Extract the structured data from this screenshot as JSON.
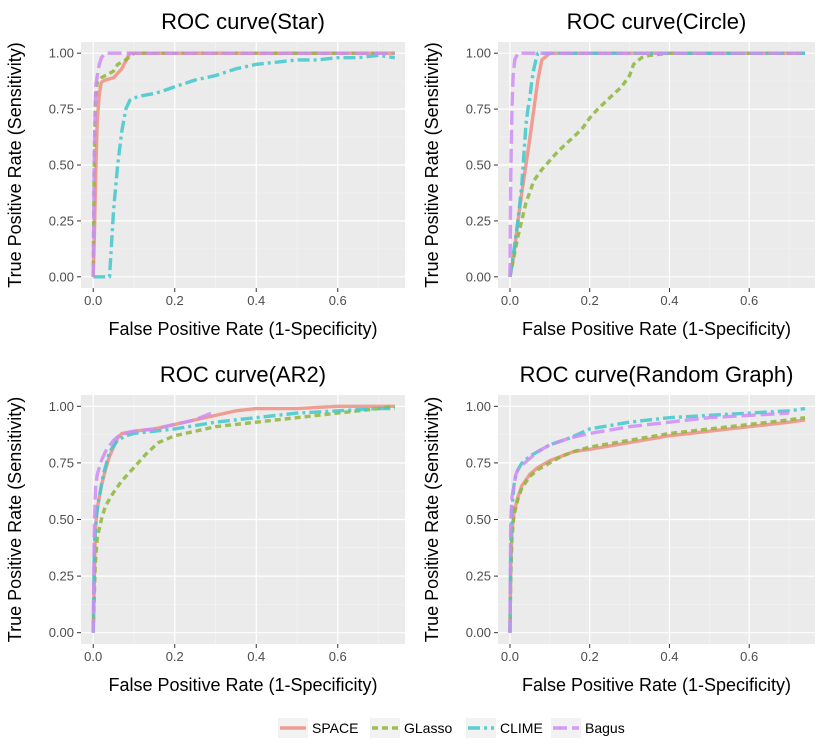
{
  "colors": {
    "SPACE": "#f08f84",
    "GLasso": "#8fb63a",
    "CLIME": "#3ec9cc",
    "Bagus": "#cf8df4",
    "panel_bg": "#ebebeb",
    "grid_major": "#ffffff",
    "grid_minor": "#f5f5f5",
    "tick_text": "#4d4d4d"
  },
  "legend": {
    "position": "bottom",
    "items": [
      {
        "name": "SPACE",
        "dash": "solid"
      },
      {
        "name": "GLasso",
        "dash": "short-dash"
      },
      {
        "name": "CLIME",
        "dash": "dash-dot"
      },
      {
        "name": "Bagus",
        "dash": "long-dash"
      }
    ]
  },
  "chart_data": [
    {
      "type": "line",
      "title": "ROC curve(Star)",
      "xlabel": "False Positive Rate (1-Specificity)",
      "ylabel": "True Positive Rate (Sensitivity)",
      "xlim": [
        -0.03,
        0.765
      ],
      "ylim": [
        -0.05,
        1.05
      ],
      "xticks": [
        0.0,
        0.2,
        0.4,
        0.6
      ],
      "xtick_labels": [
        "0.0",
        "0.2",
        "0.4",
        "0.6"
      ],
      "yticks": [
        0.0,
        0.25,
        0.5,
        0.75,
        1.0
      ],
      "ytick_labels": [
        "0.00",
        "0.25",
        "0.50",
        "0.75",
        "1.00"
      ],
      "series": [
        {
          "name": "SPACE",
          "x": [
            0,
            0.003,
            0.006,
            0.01,
            0.015,
            0.02,
            0.03,
            0.05,
            0.07,
            0.09,
            0.2,
            0.4,
            0.6,
            0.74
          ],
          "y": [
            0,
            0.2,
            0.45,
            0.7,
            0.82,
            0.87,
            0.88,
            0.89,
            0.93,
            1.0,
            1.0,
            1.0,
            1.0,
            1.0
          ]
        },
        {
          "name": "GLasso",
          "x": [
            0,
            0.002,
            0.005,
            0.01,
            0.02,
            0.03,
            0.05,
            0.06,
            0.08,
            0.1,
            0.2,
            0.4,
            0.6,
            0.74
          ],
          "y": [
            0,
            0.45,
            0.78,
            0.87,
            0.89,
            0.9,
            0.92,
            0.95,
            0.97,
            1.0,
            1.0,
            1.0,
            1.0,
            1.0
          ]
        },
        {
          "name": "CLIME",
          "x": [
            0,
            0.01,
            0.02,
            0.04,
            0.05,
            0.06,
            0.07,
            0.08,
            0.09,
            0.1,
            0.12,
            0.15,
            0.17,
            0.2,
            0.25,
            0.3,
            0.35,
            0.4,
            0.45,
            0.5,
            0.55,
            0.6,
            0.65,
            0.7,
            0.74
          ],
          "y": [
            0,
            0,
            0,
            0,
            0.3,
            0.5,
            0.65,
            0.75,
            0.79,
            0.8,
            0.81,
            0.82,
            0.83,
            0.85,
            0.88,
            0.9,
            0.93,
            0.95,
            0.96,
            0.97,
            0.97,
            0.98,
            0.98,
            0.99,
            0.98
          ]
        },
        {
          "name": "Bagus",
          "x": [
            0,
            0.003,
            0.006,
            0.01,
            0.015,
            0.02,
            0.03,
            0.1,
            0.3,
            0.5,
            0.74
          ],
          "y": [
            0,
            0.6,
            0.85,
            0.9,
            0.95,
            0.98,
            1.0,
            1.0,
            1.0,
            1.0,
            1.0
          ]
        }
      ]
    },
    {
      "type": "line",
      "title": "ROC curve(Circle)",
      "xlabel": "False Positive Rate (1-Specificity)",
      "ylabel": "True Positive Rate (Sensitivity)",
      "xlim": [
        -0.03,
        0.765
      ],
      "ylim": [
        -0.05,
        1.05
      ],
      "xticks": [
        0.0,
        0.2,
        0.4,
        0.6
      ],
      "xtick_labels": [
        "0.0",
        "0.2",
        "0.4",
        "0.6"
      ],
      "yticks": [
        0.0,
        0.25,
        0.5,
        0.75,
        1.0
      ],
      "ytick_labels": [
        "0.00",
        "0.25",
        "0.50",
        "0.75",
        "1.00"
      ],
      "series": [
        {
          "name": "SPACE",
          "x": [
            0,
            0.01,
            0.02,
            0.03,
            0.04,
            0.05,
            0.06,
            0.07,
            0.08,
            0.1,
            0.3,
            0.5,
            0.74
          ],
          "y": [
            0,
            0.1,
            0.25,
            0.38,
            0.5,
            0.62,
            0.75,
            0.88,
            0.97,
            1.0,
            1.0,
            1.0,
            1.0
          ]
        },
        {
          "name": "GLasso",
          "x": [
            0,
            0.02,
            0.04,
            0.06,
            0.08,
            0.1,
            0.12,
            0.15,
            0.18,
            0.2,
            0.22,
            0.25,
            0.28,
            0.3,
            0.31,
            0.33,
            0.35,
            0.4,
            0.5,
            0.6,
            0.74
          ],
          "y": [
            0,
            0.18,
            0.33,
            0.43,
            0.48,
            0.52,
            0.56,
            0.61,
            0.66,
            0.71,
            0.75,
            0.8,
            0.85,
            0.9,
            0.95,
            0.98,
            0.99,
            1.0,
            1.0,
            1.0,
            1.0
          ]
        },
        {
          "name": "CLIME",
          "x": [
            0,
            0.01,
            0.02,
            0.03,
            0.035,
            0.04,
            0.045,
            0.05,
            0.055,
            0.06,
            0.065,
            0.07,
            0.08,
            0.1,
            0.3,
            0.5,
            0.74
          ],
          "y": [
            0,
            0.12,
            0.25,
            0.42,
            0.55,
            0.68,
            0.75,
            0.8,
            0.88,
            0.93,
            0.97,
            1.0,
            1.0,
            1.0,
            1.0,
            1.0,
            1.0
          ]
        },
        {
          "name": "Bagus",
          "x": [
            0,
            0.002,
            0.005,
            0.008,
            0.012,
            0.02,
            0.1,
            0.3,
            0.5,
            0.74
          ],
          "y": [
            0,
            0.45,
            0.75,
            0.9,
            0.97,
            1.0,
            1.0,
            1.0,
            1.0,
            1.0
          ]
        }
      ]
    },
    {
      "type": "line",
      "title": "ROC curve(AR2)",
      "xlabel": "False Positive Rate (1-Specificity)",
      "ylabel": "True Positive Rate (Sensitivity)",
      "xlim": [
        -0.03,
        0.765
      ],
      "ylim": [
        -0.05,
        1.05
      ],
      "xticks": [
        0.0,
        0.2,
        0.4,
        0.6
      ],
      "xtick_labels": [
        "0.0",
        "0.2",
        "0.4",
        "0.6"
      ],
      "yticks": [
        0.0,
        0.25,
        0.5,
        0.75,
        1.0
      ],
      "ytick_labels": [
        "0.00",
        "0.25",
        "0.50",
        "0.75",
        "1.00"
      ],
      "series": [
        {
          "name": "SPACE",
          "x": [
            0,
            0.005,
            0.01,
            0.02,
            0.03,
            0.04,
            0.05,
            0.06,
            0.07,
            0.08,
            0.1,
            0.15,
            0.2,
            0.25,
            0.3,
            0.35,
            0.4,
            0.5,
            0.6,
            0.74
          ],
          "y": [
            0,
            0.45,
            0.55,
            0.65,
            0.72,
            0.78,
            0.82,
            0.86,
            0.88,
            0.88,
            0.89,
            0.9,
            0.92,
            0.94,
            0.96,
            0.98,
            0.99,
            0.99,
            1.0,
            1.0
          ]
        },
        {
          "name": "GLasso",
          "x": [
            0,
            0.005,
            0.01,
            0.02,
            0.03,
            0.05,
            0.07,
            0.1,
            0.13,
            0.16,
            0.2,
            0.25,
            0.3,
            0.4,
            0.5,
            0.6,
            0.7,
            0.74
          ],
          "y": [
            0,
            0.3,
            0.42,
            0.5,
            0.56,
            0.62,
            0.67,
            0.73,
            0.79,
            0.84,
            0.87,
            0.89,
            0.91,
            0.93,
            0.95,
            0.97,
            0.99,
            1.0
          ]
        },
        {
          "name": "CLIME",
          "x": [
            0,
            0.003,
            0.008,
            0.015,
            0.025,
            0.04,
            0.06,
            0.08,
            0.1,
            0.15,
            0.2,
            0.3,
            0.4,
            0.5,
            0.6,
            0.7,
            0.74
          ],
          "y": [
            0,
            0.4,
            0.52,
            0.6,
            0.7,
            0.8,
            0.85,
            0.87,
            0.88,
            0.89,
            0.9,
            0.93,
            0.95,
            0.97,
            0.98,
            0.99,
            0.99
          ]
        },
        {
          "name": "Bagus",
          "x": [
            0,
            0.003,
            0.006,
            0.01,
            0.015,
            0.02,
            0.03,
            0.05,
            0.07,
            0.1,
            0.15,
            0.2,
            0.25,
            0.29
          ],
          "y": [
            0,
            0.5,
            0.65,
            0.7,
            0.73,
            0.76,
            0.8,
            0.85,
            0.88,
            0.89,
            0.9,
            0.92,
            0.94,
            0.97
          ]
        }
      ]
    },
    {
      "type": "line",
      "title": "ROC curve(Random Graph)",
      "xlabel": "False Positive Rate (1-Specificity)",
      "ylabel": "True Positive Rate (Sensitivity)",
      "xlim": [
        -0.03,
        0.765
      ],
      "ylim": [
        -0.05,
        1.05
      ],
      "xticks": [
        0.0,
        0.2,
        0.4,
        0.6
      ],
      "xtick_labels": [
        "0.0",
        "0.2",
        "0.4",
        "0.6"
      ],
      "yticks": [
        0.0,
        0.25,
        0.5,
        0.75,
        1.0
      ],
      "ytick_labels": [
        "0.00",
        "0.25",
        "0.50",
        "0.75",
        "1.00"
      ],
      "series": [
        {
          "name": "SPACE",
          "x": [
            0,
            0.002,
            0.005,
            0.01,
            0.02,
            0.03,
            0.05,
            0.07,
            0.1,
            0.13,
            0.16,
            0.2,
            0.3,
            0.4,
            0.5,
            0.6,
            0.7,
            0.74
          ],
          "y": [
            0,
            0.3,
            0.45,
            0.53,
            0.6,
            0.65,
            0.7,
            0.73,
            0.76,
            0.78,
            0.8,
            0.81,
            0.84,
            0.87,
            0.89,
            0.91,
            0.93,
            0.94
          ]
        },
        {
          "name": "GLasso",
          "x": [
            0,
            0.002,
            0.005,
            0.01,
            0.02,
            0.03,
            0.05,
            0.07,
            0.1,
            0.13,
            0.16,
            0.2,
            0.3,
            0.4,
            0.5,
            0.6,
            0.7,
            0.74
          ],
          "y": [
            0,
            0.25,
            0.42,
            0.52,
            0.59,
            0.64,
            0.69,
            0.72,
            0.75,
            0.78,
            0.8,
            0.82,
            0.85,
            0.88,
            0.9,
            0.92,
            0.94,
            0.95
          ]
        },
        {
          "name": "CLIME",
          "x": [
            0,
            0.002,
            0.005,
            0.01,
            0.015,
            0.02,
            0.03,
            0.05,
            0.07,
            0.1,
            0.15,
            0.2,
            0.3,
            0.4,
            0.5,
            0.6,
            0.7,
            0.74
          ],
          "y": [
            0,
            0.4,
            0.55,
            0.65,
            0.7,
            0.72,
            0.75,
            0.78,
            0.8,
            0.83,
            0.86,
            0.9,
            0.93,
            0.95,
            0.96,
            0.97,
            0.98,
            0.99
          ]
        },
        {
          "name": "Bagus",
          "x": [
            0,
            0.002,
            0.005,
            0.01,
            0.015,
            0.02,
            0.03,
            0.05,
            0.07,
            0.1,
            0.15,
            0.2,
            0.3,
            0.4,
            0.5,
            0.6,
            0.7
          ],
          "y": [
            0,
            0.5,
            0.6,
            0.65,
            0.7,
            0.72,
            0.74,
            0.77,
            0.8,
            0.83,
            0.86,
            0.88,
            0.91,
            0.93,
            0.95,
            0.96,
            0.97
          ]
        }
      ]
    }
  ]
}
